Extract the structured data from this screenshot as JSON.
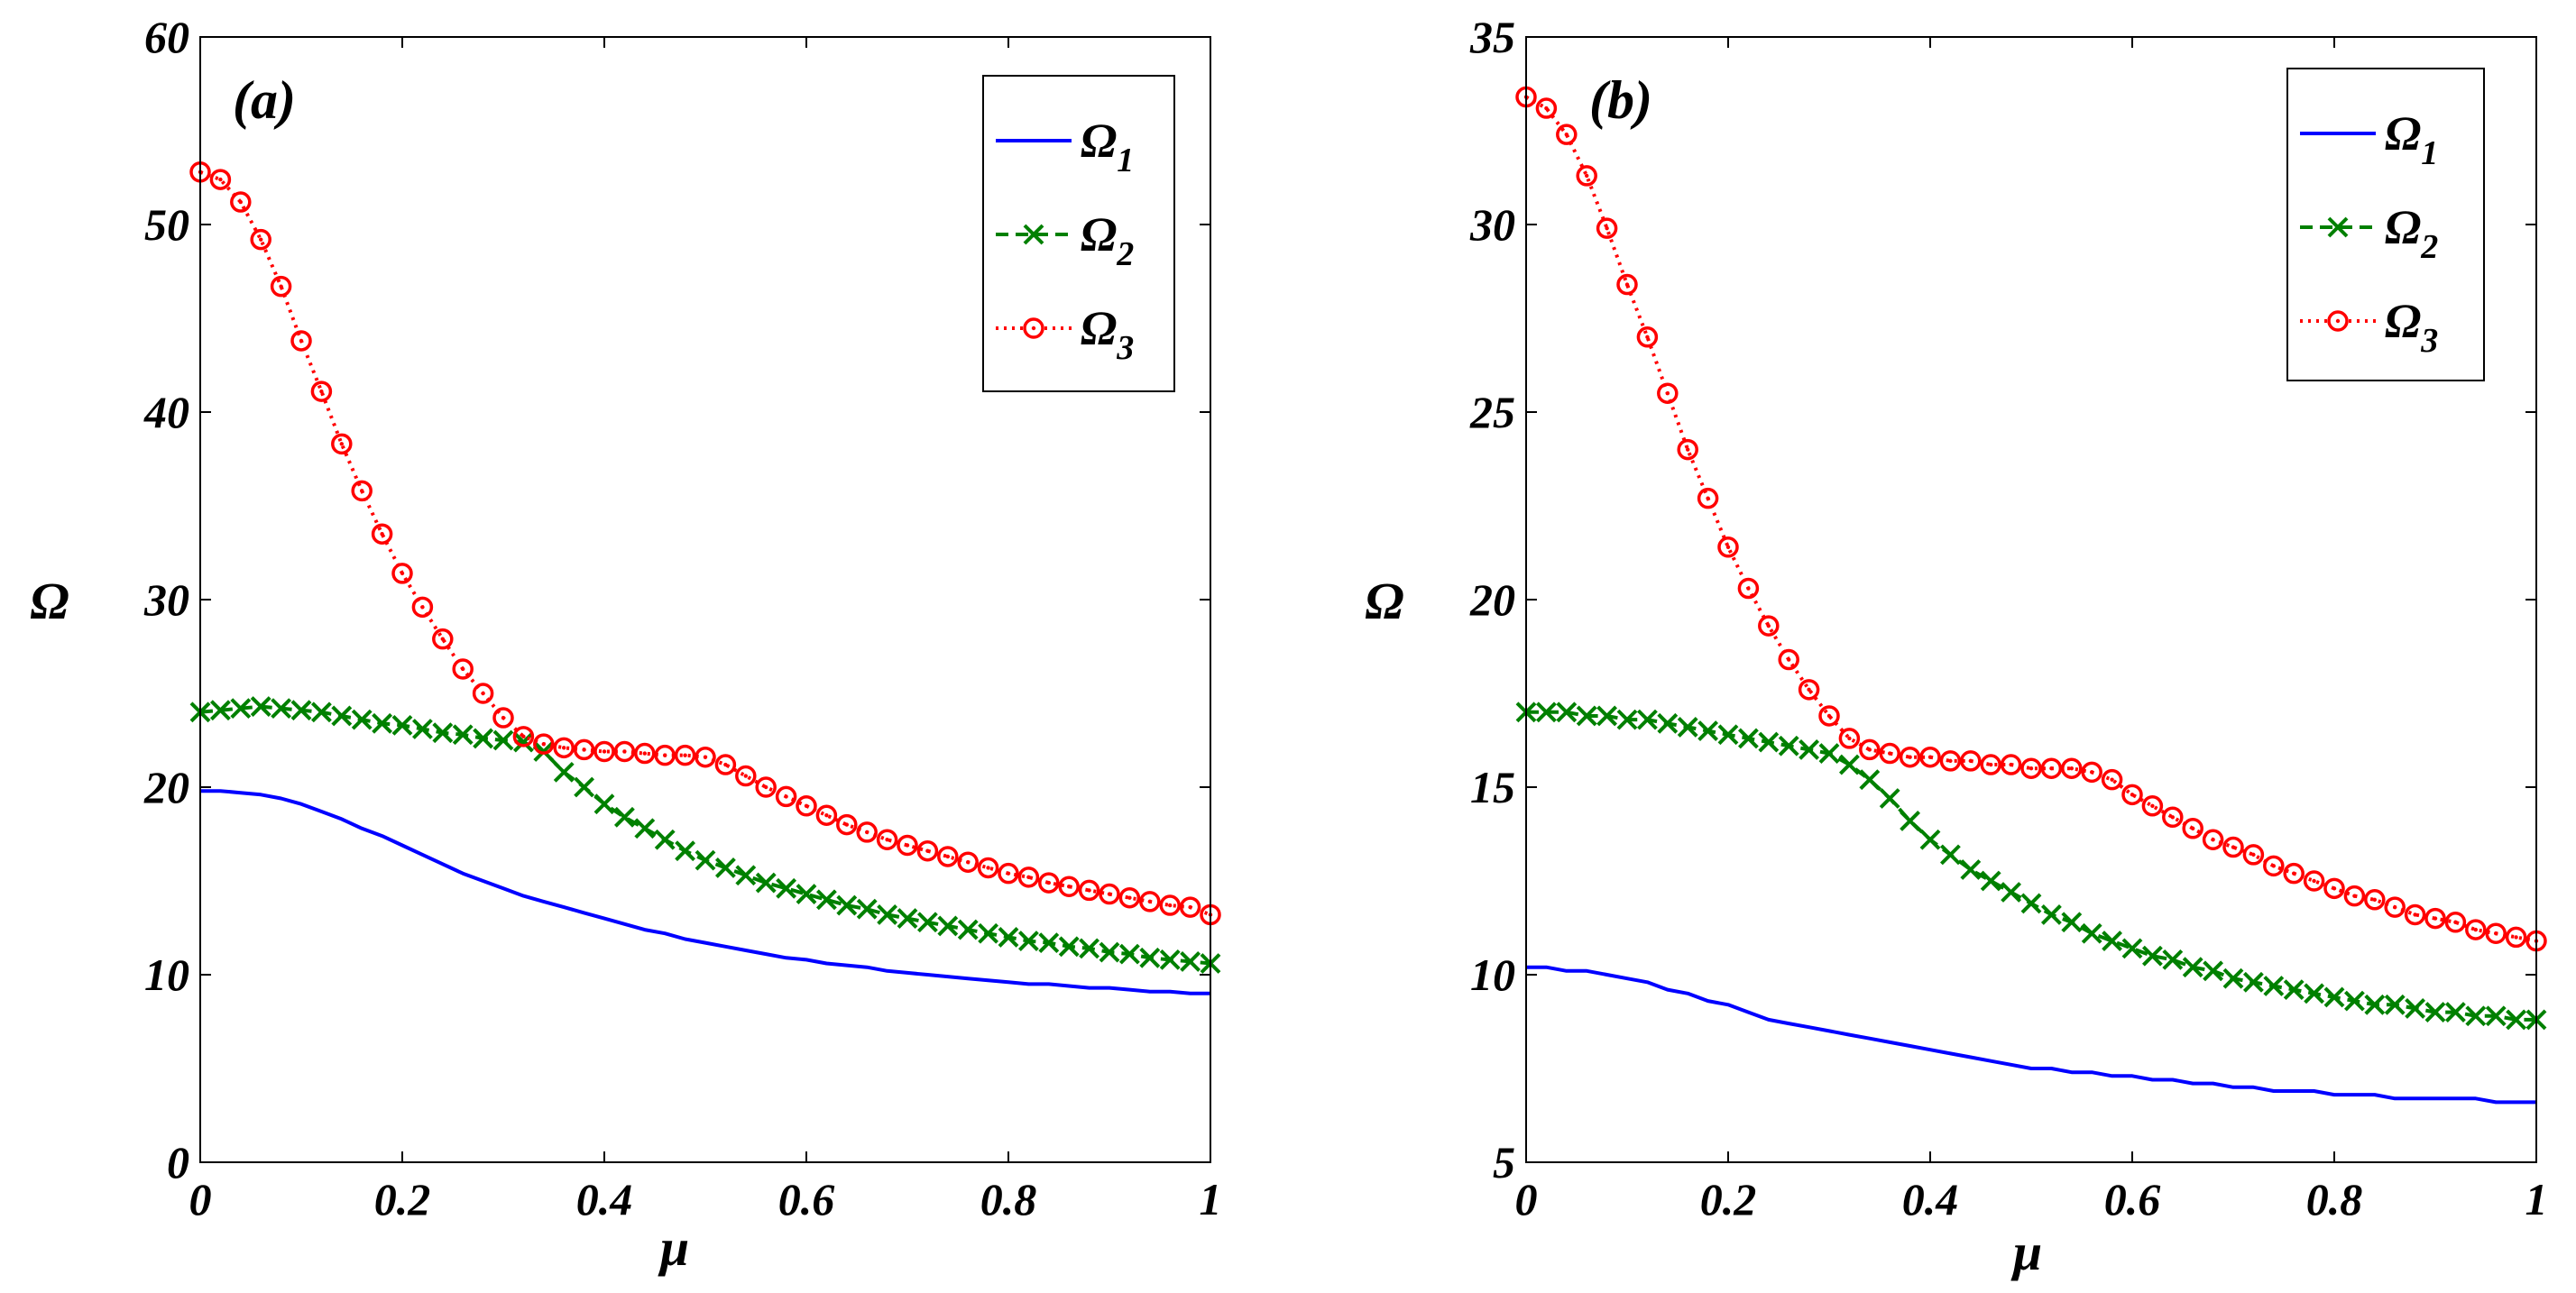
{
  "chart_data": [
    {
      "type": "line",
      "panel_label": "(a)",
      "xlabel": "μ",
      "ylabel": "Ω",
      "xlim": [
        0,
        1
      ],
      "ylim": [
        0,
        60
      ],
      "xticks": [
        0,
        0.2,
        0.4,
        0.6,
        0.8,
        1
      ],
      "xtick_labels": [
        "0",
        "0.2",
        "0.4",
        "0.6",
        "0.8",
        "1"
      ],
      "yticks": [
        0,
        10,
        20,
        30,
        40,
        50,
        60
      ],
      "ytick_labels": [
        "0",
        "10",
        "20",
        "30",
        "40",
        "50",
        "60"
      ],
      "legend_position": "top-right",
      "x": [
        0,
        0.02,
        0.04,
        0.06,
        0.08,
        0.1,
        0.12,
        0.14,
        0.16,
        0.18,
        0.2,
        0.22,
        0.24,
        0.26,
        0.28,
        0.3,
        0.32,
        0.34,
        0.36,
        0.38,
        0.4,
        0.42,
        0.44,
        0.46,
        0.48,
        0.5,
        0.52,
        0.54,
        0.56,
        0.58,
        0.6,
        0.62,
        0.64,
        0.66,
        0.68,
        0.7,
        0.72,
        0.74,
        0.76,
        0.78,
        0.8,
        0.82,
        0.84,
        0.86,
        0.88,
        0.9,
        0.92,
        0.94,
        0.96,
        0.98,
        1
      ],
      "series": [
        {
          "name": "Ω",
          "sub": "1",
          "color": "#0000ff",
          "line": "solid",
          "marker": "none",
          "values": [
            19.8,
            19.8,
            19.7,
            19.6,
            19.4,
            19.1,
            18.7,
            18.3,
            17.8,
            17.4,
            16.9,
            16.4,
            15.9,
            15.4,
            15.0,
            14.6,
            14.2,
            13.9,
            13.6,
            13.3,
            13.0,
            12.7,
            12.4,
            12.2,
            11.9,
            11.7,
            11.5,
            11.3,
            11.1,
            10.9,
            10.8,
            10.6,
            10.5,
            10.4,
            10.2,
            10.1,
            10.0,
            9.9,
            9.8,
            9.7,
            9.6,
            9.5,
            9.5,
            9.4,
            9.3,
            9.3,
            9.2,
            9.1,
            9.1,
            9.0,
            9.0
          ]
        },
        {
          "name": "Ω",
          "sub": "2",
          "color": "#008000",
          "line": "dashed",
          "marker": "x",
          "values": [
            24.0,
            24.1,
            24.2,
            24.3,
            24.2,
            24.1,
            24.0,
            23.8,
            23.6,
            23.4,
            23.3,
            23.1,
            22.9,
            22.8,
            22.6,
            22.5,
            22.4,
            21.9,
            20.8,
            20.0,
            19.1,
            18.4,
            17.8,
            17.2,
            16.6,
            16.1,
            15.7,
            15.3,
            14.9,
            14.6,
            14.3,
            14.0,
            13.7,
            13.5,
            13.2,
            13.0,
            12.8,
            12.6,
            12.4,
            12.2,
            12.0,
            11.8,
            11.7,
            11.5,
            11.4,
            11.2,
            11.1,
            10.9,
            10.8,
            10.7,
            10.6
          ]
        },
        {
          "name": "Ω",
          "sub": "3",
          "color": "#ff0000",
          "line": "dotted",
          "marker": "o",
          "values": [
            52.8,
            52.4,
            51.2,
            49.2,
            46.7,
            43.8,
            41.1,
            38.3,
            35.8,
            33.5,
            31.4,
            29.6,
            27.9,
            26.3,
            25.0,
            23.7,
            22.7,
            22.3,
            22.1,
            22.0,
            21.9,
            21.9,
            21.8,
            21.7,
            21.7,
            21.6,
            21.2,
            20.6,
            20.0,
            19.5,
            19.0,
            18.5,
            18.0,
            17.6,
            17.2,
            16.9,
            16.6,
            16.3,
            16.0,
            15.7,
            15.4,
            15.2,
            14.9,
            14.7,
            14.5,
            14.3,
            14.1,
            13.9,
            13.7,
            13.6,
            13.2
          ]
        }
      ]
    },
    {
      "type": "line",
      "panel_label": "(b)",
      "xlabel": "μ",
      "ylabel": "Ω",
      "xlim": [
        0,
        1
      ],
      "ylim": [
        5,
        35
      ],
      "xticks": [
        0,
        0.2,
        0.4,
        0.6,
        0.8,
        1
      ],
      "xtick_labels": [
        "0",
        "0.2",
        "0.4",
        "0.6",
        "0.8",
        "1"
      ],
      "yticks": [
        5,
        10,
        15,
        20,
        25,
        30,
        35
      ],
      "ytick_labels": [
        "5",
        "10",
        "15",
        "20",
        "25",
        "30",
        "35"
      ],
      "legend_position": "top-right",
      "x": [
        0,
        0.02,
        0.04,
        0.06,
        0.08,
        0.1,
        0.12,
        0.14,
        0.16,
        0.18,
        0.2,
        0.22,
        0.24,
        0.26,
        0.28,
        0.3,
        0.32,
        0.34,
        0.36,
        0.38,
        0.4,
        0.42,
        0.44,
        0.46,
        0.48,
        0.5,
        0.52,
        0.54,
        0.56,
        0.58,
        0.6,
        0.62,
        0.64,
        0.66,
        0.68,
        0.7,
        0.72,
        0.74,
        0.76,
        0.78,
        0.8,
        0.82,
        0.84,
        0.86,
        0.88,
        0.9,
        0.92,
        0.94,
        0.96,
        0.98,
        1
      ],
      "series": [
        {
          "name": "Ω",
          "sub": "1",
          "color": "#0000ff",
          "line": "solid",
          "marker": "none",
          "values": [
            10.2,
            10.2,
            10.1,
            10.1,
            10.0,
            9.9,
            9.8,
            9.6,
            9.5,
            9.3,
            9.2,
            9.0,
            8.8,
            8.7,
            8.6,
            8.5,
            8.4,
            8.3,
            8.2,
            8.1,
            8.0,
            7.9,
            7.8,
            7.7,
            7.6,
            7.5,
            7.5,
            7.4,
            7.4,
            7.3,
            7.3,
            7.2,
            7.2,
            7.1,
            7.1,
            7.0,
            7.0,
            6.9,
            6.9,
            6.9,
            6.8,
            6.8,
            6.8,
            6.7,
            6.7,
            6.7,
            6.7,
            6.7,
            6.6,
            6.6,
            6.6
          ]
        },
        {
          "name": "Ω",
          "sub": "2",
          "color": "#008000",
          "line": "dashed",
          "marker": "x",
          "values": [
            17.0,
            17.0,
            17.0,
            16.9,
            16.9,
            16.8,
            16.8,
            16.7,
            16.6,
            16.5,
            16.4,
            16.3,
            16.2,
            16.1,
            16.0,
            15.9,
            15.6,
            15.2,
            14.7,
            14.1,
            13.6,
            13.2,
            12.8,
            12.5,
            12.2,
            11.9,
            11.6,
            11.4,
            11.1,
            10.9,
            10.7,
            10.5,
            10.4,
            10.2,
            10.1,
            9.9,
            9.8,
            9.7,
            9.6,
            9.5,
            9.4,
            9.3,
            9.2,
            9.2,
            9.1,
            9.0,
            9.0,
            8.9,
            8.9,
            8.8,
            8.8
          ]
        },
        {
          "name": "Ω",
          "sub": "3",
          "color": "#ff0000",
          "line": "dotted",
          "marker": "o",
          "values": [
            33.4,
            33.1,
            32.4,
            31.3,
            29.9,
            28.4,
            27.0,
            25.5,
            24.0,
            22.7,
            21.4,
            20.3,
            19.3,
            18.4,
            17.6,
            16.9,
            16.3,
            16.0,
            15.9,
            15.8,
            15.8,
            15.7,
            15.7,
            15.6,
            15.6,
            15.5,
            15.5,
            15.5,
            15.4,
            15.2,
            14.8,
            14.5,
            14.2,
            13.9,
            13.6,
            13.4,
            13.2,
            12.9,
            12.7,
            12.5,
            12.3,
            12.1,
            12.0,
            11.8,
            11.6,
            11.5,
            11.4,
            11.2,
            11.1,
            11.0,
            10.9
          ]
        }
      ]
    }
  ]
}
